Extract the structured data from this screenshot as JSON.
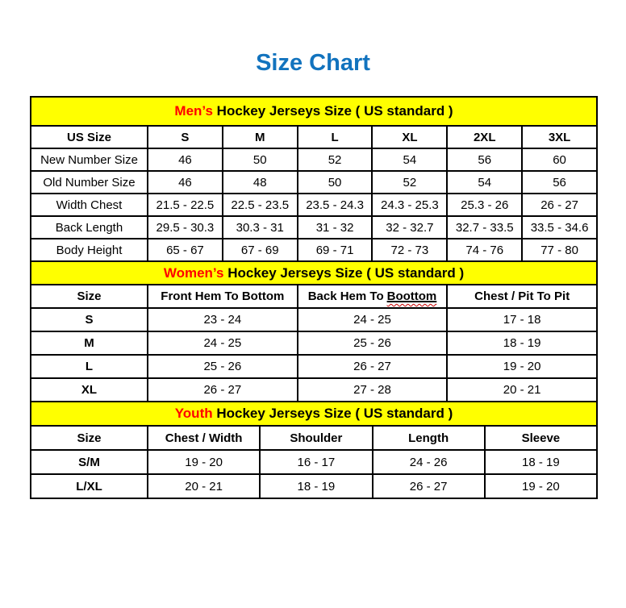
{
  "page": {
    "title": "Size Chart"
  },
  "colors": {
    "title_blue": "#1273BE",
    "banner_yellow": "#FFFF00",
    "highlight_red": "#FF0000",
    "squiggle_red": "#CC0000",
    "border_black": "#000000"
  },
  "sections": {
    "men": {
      "banner_highlight": "Men’s",
      "banner_rest": " Hockey Jerseys Size ( US standard )",
      "columns": [
        "US Size",
        "S",
        "M",
        "L",
        "XL",
        "2XL",
        "3XL"
      ],
      "rows": [
        [
          "New Number Size",
          "46",
          "50",
          "52",
          "54",
          "56",
          "60"
        ],
        [
          "Old Number Size",
          "46",
          "48",
          "50",
          "52",
          "54",
          "56"
        ],
        [
          "Width Chest",
          "21.5 - 22.5",
          "22.5 - 23.5",
          "23.5 - 24.3",
          "24.3 - 25.3",
          "25.3 - 26",
          "26 - 27"
        ],
        [
          "Back Length",
          "29.5 - 30.3",
          "30.3 - 31",
          "31 - 32",
          "32 - 32.7",
          "32.7 - 33.5",
          "33.5 - 34.6"
        ],
        [
          "Body Height",
          "65 - 67",
          "67 - 69",
          "69 - 71",
          "72 - 73",
          "74 - 76",
          "77 - 80"
        ]
      ]
    },
    "women": {
      "banner_highlight": "Women’s",
      "banner_rest": " Hockey Jerseys Size ( US standard )",
      "columns": [
        "Size",
        "Front Hem To Bottom",
        "Back Hem To",
        "Chest / Pit To Pit"
      ],
      "misspelled_word": "Boottom",
      "rows": [
        [
          "S",
          "23 - 24",
          "24 - 25",
          "17 - 18"
        ],
        [
          "M",
          "24 - 25",
          "25 - 26",
          "18 - 19"
        ],
        [
          "L",
          "25 - 26",
          "26 - 27",
          "19 - 20"
        ],
        [
          "XL",
          "26 - 27",
          "27 - 28",
          "20 - 21"
        ]
      ]
    },
    "youth": {
      "banner_highlight": "Youth",
      "banner_rest": " Hockey Jerseys Size ( US standard )",
      "columns": [
        "Size",
        "Chest / Width",
        "Shoulder",
        "Length",
        "Sleeve"
      ],
      "rows": [
        [
          "S/M",
          "19 - 20",
          "16 - 17",
          "24 - 26",
          "18 - 19"
        ],
        [
          "L/XL",
          "20 - 21",
          "18 - 19",
          "26 - 27",
          "19 - 20"
        ]
      ]
    }
  }
}
